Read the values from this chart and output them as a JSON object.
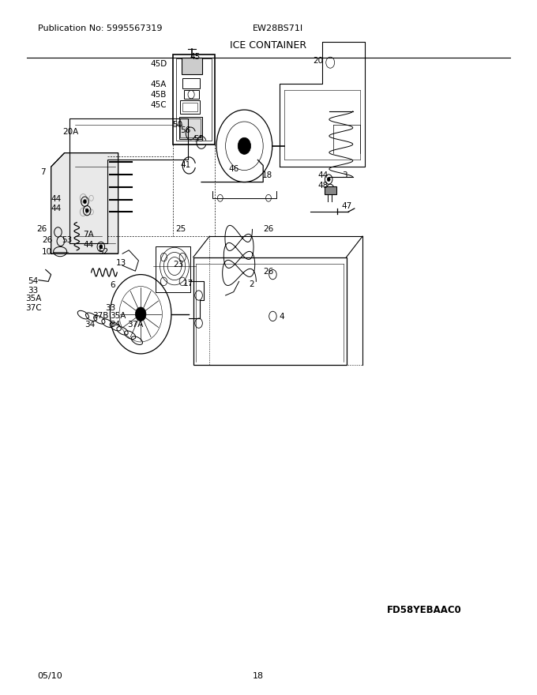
{
  "pub_no": "Publication No: 5995567319",
  "model": "EW28BS71I",
  "title": "ICE CONTAINER",
  "date": "05/10",
  "page": "18",
  "fig_code": "FD58YEBAAC0",
  "bg_color": "#ffffff",
  "border_color": "#000000",
  "text_color": "#000000",
  "title_fontsize": 9,
  "header_fontsize": 8,
  "label_fontsize": 7.5
}
